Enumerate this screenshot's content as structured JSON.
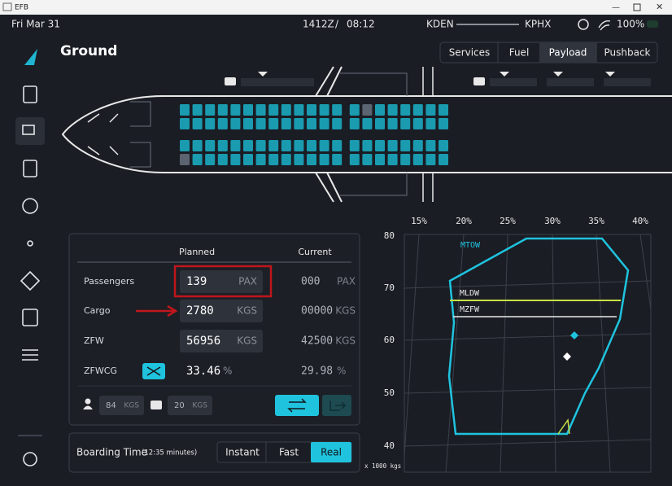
{
  "window": {
    "title": "EFB"
  },
  "status_bar": {
    "date": "Fri Mar 31",
    "zulu": "1412Z",
    "separator": "/",
    "local": "08:12",
    "origin": "KDEN",
    "destination": "KPHX",
    "battery": "100%"
  },
  "header": {
    "title": "Ground",
    "tabs": [
      "Services",
      "Fuel",
      "Payload",
      "Pushback"
    ]
  },
  "payload": {
    "columns": [
      "Planned",
      "Current"
    ],
    "rows": [
      {
        "label": "Passengers",
        "planned": "139",
        "planned_unit": "PAX",
        "current": "000",
        "current_unit": "PAX"
      },
      {
        "label": "Cargo",
        "planned": "2780",
        "planned_unit": "KGS",
        "current": "00000",
        "current_unit": "KGS"
      },
      {
        "label": "ZFW",
        "planned": "56956",
        "planned_unit": "KGS",
        "current": "42500",
        "current_unit": "KGS"
      },
      {
        "label": "ZFWCG",
        "planned": "33.46",
        "planned_unit": "%",
        "current": "29.98",
        "current_unit": "%"
      }
    ],
    "passenger_weight": "84",
    "passenger_weight_unit": "KGS",
    "bag_weight": "20",
    "bag_weight_unit": "KGS"
  },
  "boarding": {
    "label": "Boarding Time",
    "duration": "(12:35 minutes)",
    "options": [
      "Instant",
      "Fast",
      "Real"
    ]
  },
  "cg_chart": {
    "x_labels": [
      "15%",
      "20%",
      "25%",
      "30%",
      "35%",
      "40%"
    ],
    "y_labels": [
      "80",
      "70",
      "60",
      "50",
      "40"
    ],
    "unit_label": "x 1000 kgs",
    "limits": [
      "MTOW",
      "MLDW",
      "MZFW"
    ]
  }
}
